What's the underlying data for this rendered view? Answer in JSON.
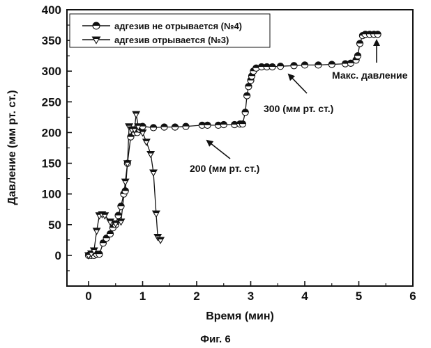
{
  "chart_data": {
    "type": "scatter",
    "title": "",
    "xlabel": "Время (мин)",
    "ylabel": "Давление (мм рт. ст.)",
    "xlim": [
      -0.4,
      6
    ],
    "ylim": [
      -50,
      400
    ],
    "xticks": [
      0,
      1,
      2,
      3,
      4,
      5,
      6
    ],
    "yticks": [
      0,
      50,
      100,
      150,
      200,
      250,
      300,
      350,
      400
    ],
    "legend_position": "top-left",
    "series": [
      {
        "name": "адгезив не отрывается (№4)",
        "marker": "half-filled-circle",
        "x": [
          0.0,
          0.05,
          0.1,
          0.15,
          0.2,
          0.27,
          0.33,
          0.4,
          0.45,
          0.5,
          0.55,
          0.6,
          0.65,
          0.68,
          0.72,
          0.78,
          0.85,
          0.9,
          0.95,
          1.0,
          1.2,
          1.4,
          1.6,
          1.8,
          2.1,
          2.2,
          2.4,
          2.5,
          2.7,
          2.8,
          2.85,
          2.9,
          2.93,
          2.96,
          3.0,
          3.02,
          3.05,
          3.1,
          3.2,
          3.3,
          3.4,
          3.55,
          3.8,
          4.0,
          4.25,
          4.5,
          4.75,
          4.85,
          4.95,
          4.98,
          5.02,
          5.07,
          5.12,
          5.2,
          5.28,
          5.35
        ],
        "y": [
          0,
          0,
          0,
          2,
          2,
          20,
          28,
          35,
          45,
          50,
          65,
          80,
          100,
          105,
          150,
          193,
          200,
          200,
          205,
          210,
          208,
          209,
          209,
          210,
          212,
          212,
          212,
          213,
          213,
          214,
          214,
          233,
          260,
          275,
          285,
          292,
          300,
          305,
          307,
          307,
          307,
          308,
          309,
          310,
          310,
          311,
          312,
          313,
          318,
          325,
          345,
          358,
          360,
          360,
          360,
          360
        ]
      },
      {
        "name": "адгезив отрывается (№3)",
        "marker": "half-filled-triangle-down",
        "x": [
          0.0,
          0.05,
          0.1,
          0.15,
          0.2,
          0.25,
          0.3,
          0.4,
          0.5,
          0.6,
          0.68,
          0.72,
          0.75,
          0.8,
          0.85,
          0.88,
          0.92,
          1.0,
          1.07,
          1.15,
          1.2,
          1.25,
          1.28,
          1.33
        ],
        "y": [
          0,
          3,
          8,
          40,
          65,
          67,
          65,
          55,
          52,
          55,
          120,
          150,
          210,
          205,
          205,
          230,
          210,
          200,
          185,
          165,
          135,
          68,
          30,
          25
        ]
      }
    ],
    "annotations": [
      {
        "text": "200 (мм рт. ст.)",
        "x": 2.45,
        "y": 190
      },
      {
        "text": "300 (мм рт. ст.)",
        "x": 3.75,
        "y": 290
      },
      {
        "text": "Макс. давление",
        "x": 5.35,
        "y": 360
      }
    ]
  },
  "caption": "Фиг. 6"
}
